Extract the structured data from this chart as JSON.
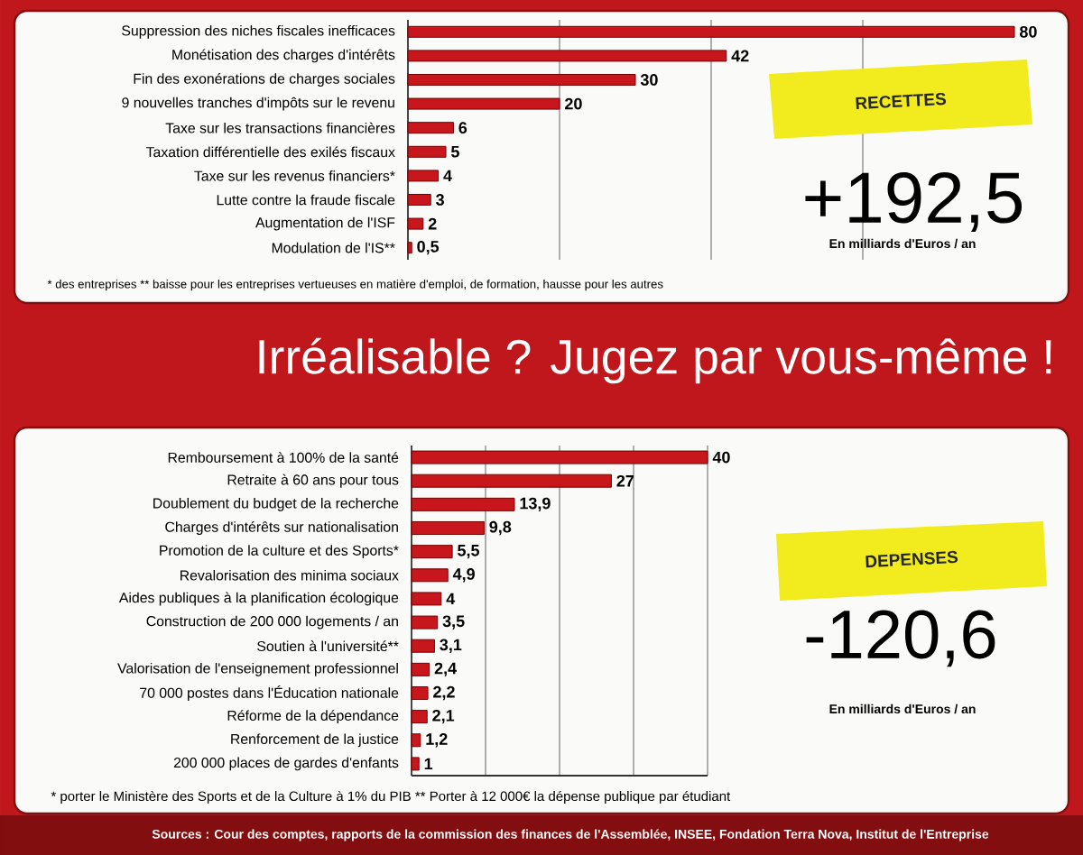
{
  "chart_data": [
    {
      "type": "bar",
      "orientation": "horizontal",
      "categories": [
        "Suppression des niches fiscales inefficaces",
        "Monétisation des charges d'intérêts",
        "Fin des exonérations de charges sociales",
        "9 nouvelles tranches d'impôts sur le revenu",
        "Taxe sur les transactions financières",
        "Taxation différentielle des exilés fiscaux",
        "Taxe sur les revenus financiers*",
        "Lutte contre la fraude fiscale",
        "Augmentation de l'ISF",
        "Modulation de l'IS**"
      ],
      "values": [
        80,
        42,
        30,
        20,
        6,
        5,
        4,
        3,
        2,
        0.5
      ],
      "value_labels": [
        "80",
        "42",
        "30",
        "20",
        "6",
        "5",
        "4",
        "3",
        "2",
        "0,5"
      ],
      "color": "#c8161d",
      "xlim": [
        0,
        80
      ],
      "xticks": [
        {
          "value": 20,
          "label": null
        },
        {
          "value": 40,
          "label": null
        },
        {
          "value": 60,
          "label": null
        }
      ],
      "grid": "x",
      "tick_labels": "y",
      "annotations": [
        "RECETTES",
        "+192,5",
        "En milliards d'Euros / an",
        "* des entreprises ** baisse pour les entreprises vertueuses en matière d'emploi, de formation, hausse pour les autres"
      ]
    },
    {
      "type": "bar",
      "orientation": "horizontal",
      "categories": [
        "Remboursement à 100% de la santé",
        "Retraite à 60 ans pour tous",
        "Doublement du budget de la recherche",
        "Charges d'intérêts sur nationalisation",
        "Promotion de la culture et des Sports*",
        "Revalorisation des minima sociaux",
        "Aides publiques à la planification écologique",
        "Construction de 200 000 logements / an",
        "Soutien à l'université**",
        "Valorisation de l'enseignement professionnel",
        "70 000 postes dans l'Éducation nationale",
        "Réforme de la dépendance",
        "Renforcement de la justice",
        "200 000 places de gardes d'enfants"
      ],
      "values": [
        40,
        27,
        13.9,
        9.8,
        5.5,
        4.9,
        4,
        3.5,
        3.1,
        2.4,
        2.2,
        2.1,
        1.2,
        1
      ],
      "value_labels": [
        "40",
        "27",
        "13,9",
        "9,8",
        "5,5",
        "4,9",
        "4",
        "3,5",
        "3,1",
        "2,4",
        "2,2",
        "2,1",
        "1,2",
        "1"
      ],
      "color": "#c8161d",
      "xlim": [
        0,
        40
      ],
      "xticks": [
        {
          "value": 10,
          "label": null
        },
        {
          "value": 20,
          "label": null
        },
        {
          "value": 30,
          "label": null
        },
        {
          "value": 40,
          "label": null
        }
      ],
      "grid": "x",
      "tick_labels": "y",
      "annotations": [
        "Irréalisable ? Jugez par vous-même !",
        "DEPENSES",
        "-120,6",
        "En milliards d'Euros / an",
        "* porter le Ministère des Sports et de la Culture à 1% du PIB ** Porter à 12 000€ la dépense publique par étudiant",
        "Sources : Cour des comptes, rapports de la commission des finances de l'Assemblée, INSEE, Fondation Terra Nova, Institut de l'Entreprise"
      ]
    }
  ]
}
